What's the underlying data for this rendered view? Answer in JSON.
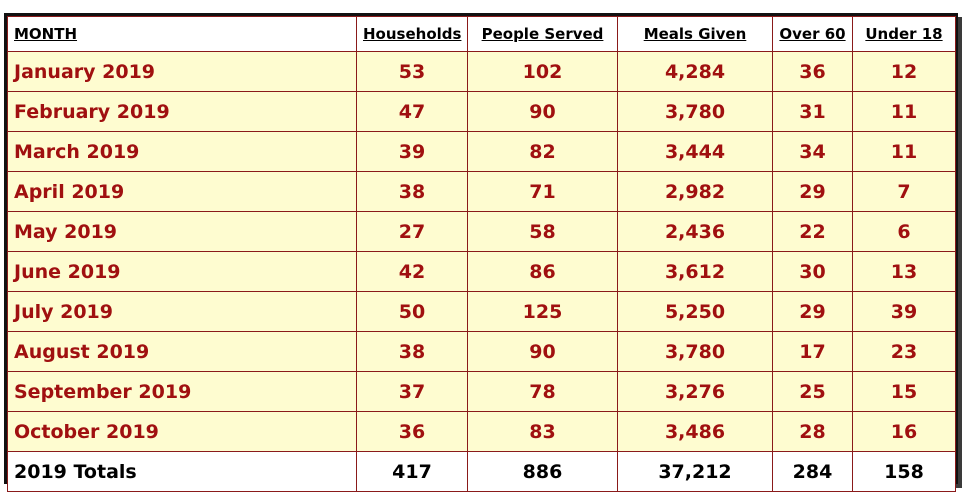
{
  "headers": {
    "month": "MONTH",
    "households": "Households",
    "people_served": "People Served",
    "meals_given": "Meals Given",
    "over_60": "Over 60",
    "under_18": "Under 18"
  },
  "rows": [
    {
      "month": "January 2019",
      "households": "53",
      "people_served": "102",
      "meals_given": "4,284",
      "over_60": "36",
      "under_18": "12"
    },
    {
      "month": "February 2019",
      "households": "47",
      "people_served": "90",
      "meals_given": "3,780",
      "over_60": "31",
      "under_18": "11"
    },
    {
      "month": "March 2019",
      "households": "39",
      "people_served": "82",
      "meals_given": "3,444",
      "over_60": "34",
      "under_18": "11"
    },
    {
      "month": "April 2019",
      "households": "38",
      "people_served": "71",
      "meals_given": "2,982",
      "over_60": "29",
      "under_18": "7"
    },
    {
      "month": "May 2019",
      "households": "27",
      "people_served": "58",
      "meals_given": "2,436",
      "over_60": "22",
      "under_18": "6"
    },
    {
      "month": "June 2019",
      "households": "42",
      "people_served": "86",
      "meals_given": "3,612",
      "over_60": "30",
      "under_18": "13"
    },
    {
      "month": "July 2019",
      "households": "50",
      "people_served": "125",
      "meals_given": "5,250",
      "over_60": "29",
      "under_18": "39"
    },
    {
      "month": "August 2019",
      "households": "38",
      "people_served": "90",
      "meals_given": "3,780",
      "over_60": "17",
      "under_18": "23"
    },
    {
      "month": "September 2019",
      "households": "37",
      "people_served": "78",
      "meals_given": "3,276",
      "over_60": "25",
      "under_18": "15"
    },
    {
      "month": "October 2019",
      "households": "36",
      "people_served": "83",
      "meals_given": "3,486",
      "over_60": "28",
      "under_18": "16"
    }
  ],
  "totals": {
    "label": "2019 Totals",
    "households": "417",
    "people_served": "886",
    "meals_given": "37,212",
    "over_60": "284",
    "under_18": "158"
  },
  "colors": {
    "row_background": "#fefcd0",
    "value_text": "#a01010",
    "border": "#8a1a1a",
    "header_background": "#ffffff"
  }
}
